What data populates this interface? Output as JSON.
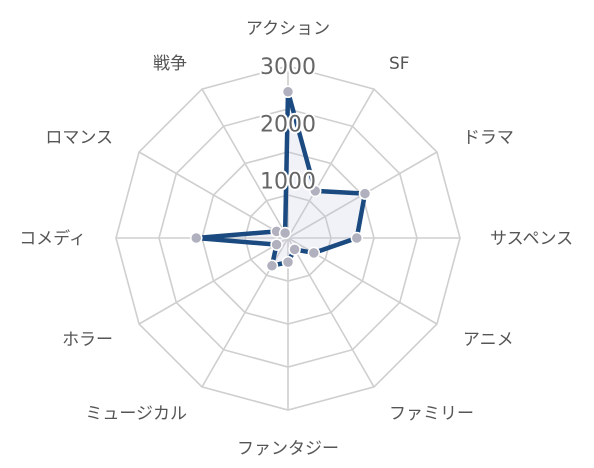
{
  "chart_data": {
    "type": "radar",
    "title": "",
    "axes": [
      "アクション",
      "SF",
      "ドラマ",
      "サスペンス",
      "アニメ",
      "ファミリー",
      "ファンタジー",
      "ミュージカル",
      "ホラー",
      "コメディ",
      "ロマンス",
      "戦争"
    ],
    "series": [
      {
        "values": [
          2550,
          950,
          1550,
          1200,
          520,
          230,
          420,
          560,
          230,
          1600,
          230,
          100
        ]
      }
    ],
    "ticks": [
      1000,
      2000,
      3000
    ],
    "tick_labels": [
      "1000",
      "2000",
      "3000"
    ],
    "rmax": 3000,
    "grid": true,
    "legend": "none"
  },
  "colors": {
    "line": "#1a4a80",
    "point": "#b0b0be",
    "grid": "#cfcfcf"
  }
}
